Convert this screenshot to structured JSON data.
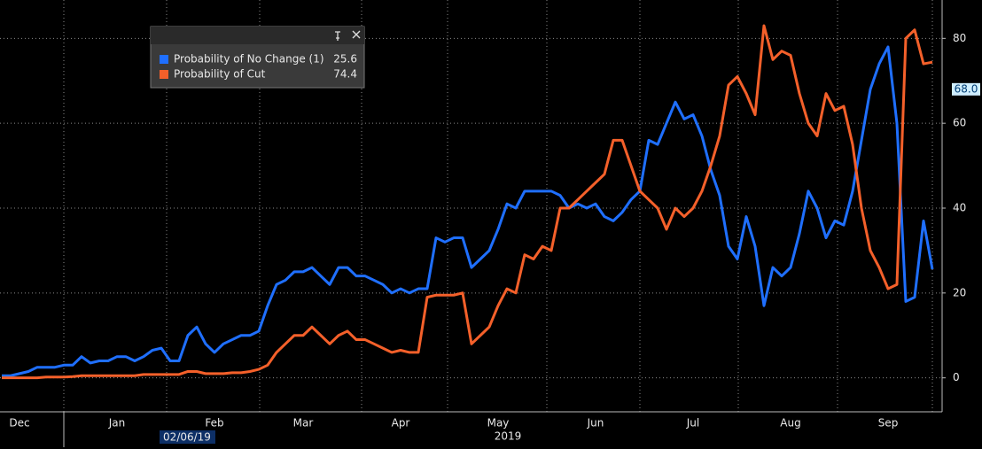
{
  "chart_data": {
    "type": "line",
    "categories": [
      null,
      null,
      "Dec",
      null,
      null,
      null,
      null,
      null,
      null,
      null,
      null,
      null,
      null,
      "Jan",
      null,
      null,
      null,
      null,
      null,
      null,
      null,
      null,
      null,
      null,
      "Feb",
      null,
      null,
      null,
      null,
      null,
      null,
      null,
      null,
      null,
      "Mar",
      null,
      null,
      null,
      null,
      null,
      null,
      null,
      null,
      null,
      null,
      "Apr",
      null,
      null,
      null,
      null,
      null,
      null,
      null,
      null,
      null,
      null,
      "May",
      null,
      null,
      null,
      null,
      null,
      null,
      null,
      null,
      null,
      null,
      "Jun",
      null,
      null,
      null,
      null,
      null,
      null,
      null,
      null,
      null,
      null,
      "Jul",
      null,
      null,
      null,
      null,
      null,
      null,
      null,
      null,
      null,
      null,
      "Aug",
      null,
      null,
      null,
      null,
      null,
      null,
      null,
      null,
      null,
      null,
      "Sep",
      null,
      null,
      null,
      null,
      null
    ],
    "year_label": "2019",
    "cursor_date": "02/06/19",
    "cursor_value": {
      "value": 68,
      "label": "68.0"
    },
    "series": [
      {
        "name": "Probability of No Change (1)",
        "color": "#1f6fff",
        "values": [
          0.5,
          0.5,
          1,
          1.5,
          2.5,
          2.5,
          2.5,
          3,
          3,
          5,
          3.5,
          4,
          4,
          5,
          5,
          4,
          5,
          6.5,
          7,
          4,
          4,
          10,
          12,
          8,
          6,
          8,
          9,
          10,
          10,
          11,
          17,
          22,
          23,
          25,
          25,
          26,
          24,
          22,
          26,
          26,
          24,
          24,
          23,
          22,
          20,
          21,
          20,
          21,
          21,
          33,
          32,
          33,
          33,
          26,
          28,
          30,
          35,
          41,
          40,
          44,
          44,
          44,
          44,
          43,
          40,
          41,
          40,
          41,
          38,
          37,
          39,
          42,
          44,
          56,
          55,
          60,
          65,
          61,
          62,
          57,
          49,
          43,
          31,
          28,
          38,
          31,
          17,
          26,
          24,
          26,
          34,
          44,
          40,
          33,
          37,
          36,
          44,
          56,
          68,
          74,
          78,
          60,
          18,
          19,
          37,
          25.6
        ]
      },
      {
        "name": "Probability of Cut",
        "color": "#f4602a",
        "values": [
          0,
          0,
          0,
          0,
          0,
          0.2,
          0.2,
          0.2,
          0.3,
          0.5,
          0.5,
          0.5,
          0.5,
          0.5,
          0.5,
          0.5,
          0.8,
          0.8,
          0.8,
          0.8,
          0.8,
          1.5,
          1.5,
          1,
          1,
          1,
          1.2,
          1.2,
          1.5,
          2,
          3,
          6,
          8,
          10,
          10,
          12,
          10,
          8,
          10,
          11,
          9,
          9,
          8,
          7,
          6,
          6.5,
          6,
          6,
          19,
          19.5,
          19.5,
          19.5,
          20,
          8,
          10,
          12,
          17,
          21,
          20,
          29,
          28,
          31,
          30,
          40,
          40,
          42,
          44,
          46,
          48,
          56,
          56,
          50,
          44,
          42,
          40,
          35,
          40,
          38,
          40,
          44,
          50,
          57,
          69,
          71,
          67,
          62,
          83,
          75,
          77,
          76,
          67,
          60,
          57,
          67,
          63,
          64,
          55,
          40,
          30,
          26,
          21,
          22,
          80,
          82,
          74,
          74.4
        ]
      }
    ],
    "ylim": [
      -8,
      88
    ],
    "yticks": [
      0,
      20,
      40,
      60,
      80
    ],
    "grid": true,
    "legend": "top-left"
  }
}
